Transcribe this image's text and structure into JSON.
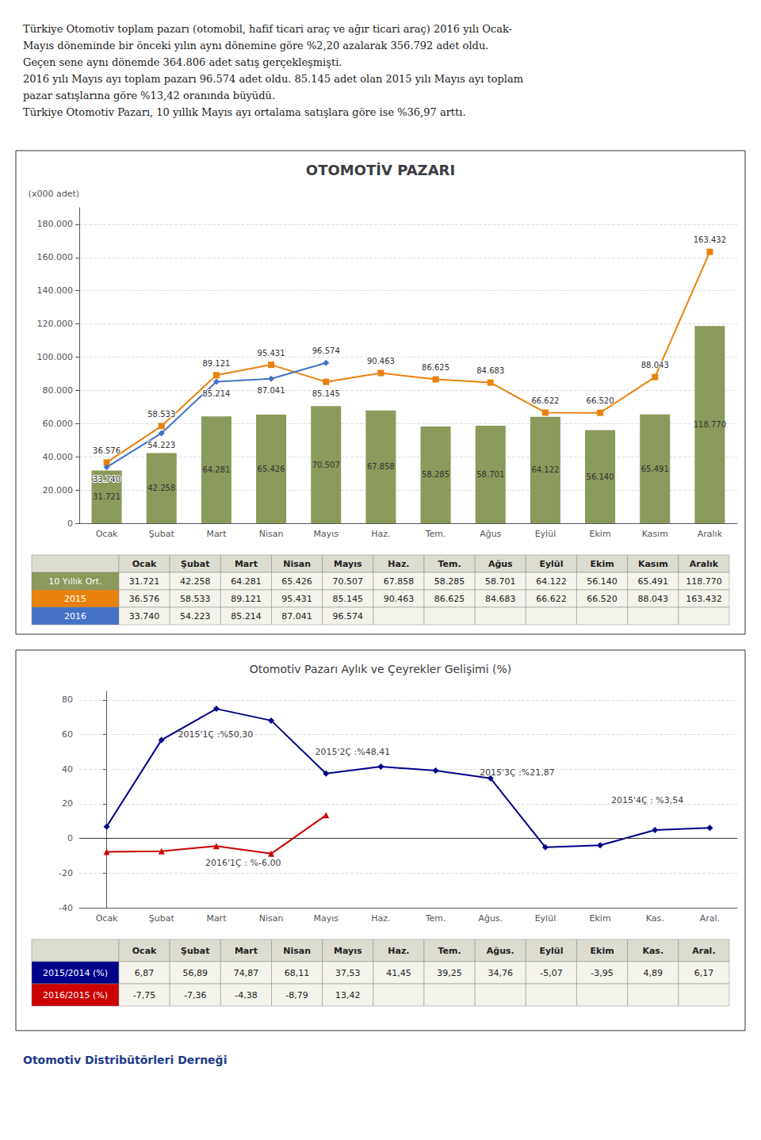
{
  "paragraphs": [
    [
      "Türkiye Otomotiv toplam pazarı (otomobil, hafif ticari araç ve ağır ticari araç) 2016 yılı Ocak-\nMayıs döneminde bir önceki yılın aynı dönemine göre %2,20 azalarak 356.792 adet oldu."
    ],
    [
      "Geçen sene aynı dönemde 364.806 adet satış gerçekleşmişti."
    ],
    [
      "2016 yılı Mayıs ayı toplam pazarı 96.574 adet oldu",
      ". 85.145 adet olan 2015 yılı Mayıs ayı toplam"
    ],
    [
      "pazar satışlarına göre %13,42 oranında büyüdü."
    ],
    [
      "Türkiye Otomotiv Pazarı, 10 yıllık Mayıs ayı ortalama satışlara göre ise %36,97 arttı."
    ]
  ],
  "footer": "Otomotiv Distribütörleri Derneği",
  "chart_data": [
    {
      "type": "bar",
      "title": "OTOMOTİV PAZARI",
      "ylabel": "(x000 adet)",
      "categories": [
        "Ocak",
        "Şubat",
        "Mart",
        "Nisan",
        "Mayıs",
        "Haz.",
        "Tem.",
        "Ağus",
        "Eylül",
        "Ekim",
        "Kasım",
        "Aralık"
      ],
      "series": [
        {
          "name": "10 Yıllık Ort.",
          "type": "bar",
          "color": "#8a9a5a",
          "values": [
            31721,
            42258,
            64281,
            65426,
            70507,
            67858,
            58285,
            58701,
            64122,
            56140,
            65491,
            118770
          ],
          "value_labels": [
            "31.721",
            "42.258",
            "64.281",
            "65.426",
            "70.507",
            "67.858",
            "58.285",
            "58.701",
            "64.122",
            "56.140",
            "65.491",
            "118.770"
          ]
        },
        {
          "name": "2015",
          "type": "line",
          "color": "#e8820c",
          "marker": "square",
          "values": [
            36576,
            58533,
            89121,
            95431,
            85145,
            90463,
            86625,
            84683,
            66622,
            66520,
            88043,
            163432
          ],
          "value_labels": [
            "36.576",
            "58.533",
            "89.121",
            "95.431",
            "85.145",
            "90.463",
            "86.625",
            "84.683",
            "66.622",
            "66.520",
            "88.043",
            "163.432"
          ]
        },
        {
          "name": "2016",
          "type": "line",
          "color": "#4472c4",
          "marker": "diamond",
          "values": [
            33740,
            54223,
            85214,
            87041,
            96574,
            null,
            null,
            null,
            null,
            null,
            null,
            null
          ],
          "value_labels": [
            "33.740",
            "54.223",
            "85.214",
            "87.041",
            "96.574",
            null,
            null,
            null,
            null,
            null,
            null,
            null
          ]
        }
      ],
      "ylim": [
        0,
        190000
      ],
      "yticks": [
        0,
        {
          "value": 20000,
          "label": "20.000"
        },
        {
          "value": 40000,
          "label": "40.000"
        },
        {
          "value": 60000,
          "label": "60.000"
        },
        {
          "value": 80000,
          "label": "80.000"
        },
        {
          "value": 100000,
          "label": "100.000"
        },
        {
          "value": 120000,
          "label": "120.000"
        },
        {
          "value": 140000,
          "label": "140.000"
        },
        {
          "value": 160000,
          "label": "160.000"
        },
        {
          "value": 180000,
          "label": "180.000"
        }
      ],
      "grid": true,
      "data_labels": true
    },
    {
      "type": "line",
      "title": "Otomotiv Pazarı Aylık ve Çeyrekler Gelişimi (%)",
      "categories": [
        "Ocak",
        "Şubat",
        "Mart",
        "Nisan",
        "Mayıs",
        "Haz.",
        "Tem.",
        "Ağus.",
        "Eylül",
        "Ekim",
        "Kas.",
        "Aral."
      ],
      "series": [
        {
          "name": "2015/2014 (%)",
          "color": "#00008b",
          "marker": "diamond",
          "values": [
            6.87,
            56.89,
            74.87,
            68.11,
            37.53,
            41.45,
            39.25,
            34.76,
            -5.07,
            -3.95,
            4.89,
            6.17
          ],
          "value_labels": [
            "6,87",
            "56,89",
            "74,87",
            "68,11",
            "37,53",
            "41,45",
            "39,25",
            "34,76",
            "-5,07",
            "-3,95",
            "4,89",
            "6,17"
          ]
        },
        {
          "name": "2016/2015 (%)",
          "color": "#cc0000",
          "marker": "triangle",
          "values": [
            -7.75,
            -7.36,
            -4.38,
            -8.79,
            13.42,
            null,
            null,
            null,
            null,
            null,
            null,
            null
          ],
          "value_labels": [
            "-7,75",
            "-7,36",
            "-4,38",
            "-8,79",
            "13,42",
            null,
            null,
            null,
            null,
            null,
            null,
            null
          ]
        }
      ],
      "ylim": [
        -40,
        85
      ],
      "yticks": [
        -40,
        -20,
        0,
        20,
        40,
        60,
        80
      ],
      "grid": true,
      "annotations": [
        {
          "text": "2015'1Ç :%50,30",
          "x": 1.3,
          "y": 60
        },
        {
          "text": "2015'2Ç :%48,41",
          "x": 3.8,
          "y": 50
        },
        {
          "text": "2015'3Ç :%21,87",
          "x": 6.8,
          "y": 38
        },
        {
          "text": "2015'4Ç : %3,54",
          "x": 9.2,
          "y": 22
        },
        {
          "text": "2016'1Ç : %-6,00",
          "x": 1.8,
          "y": -14
        }
      ]
    }
  ]
}
